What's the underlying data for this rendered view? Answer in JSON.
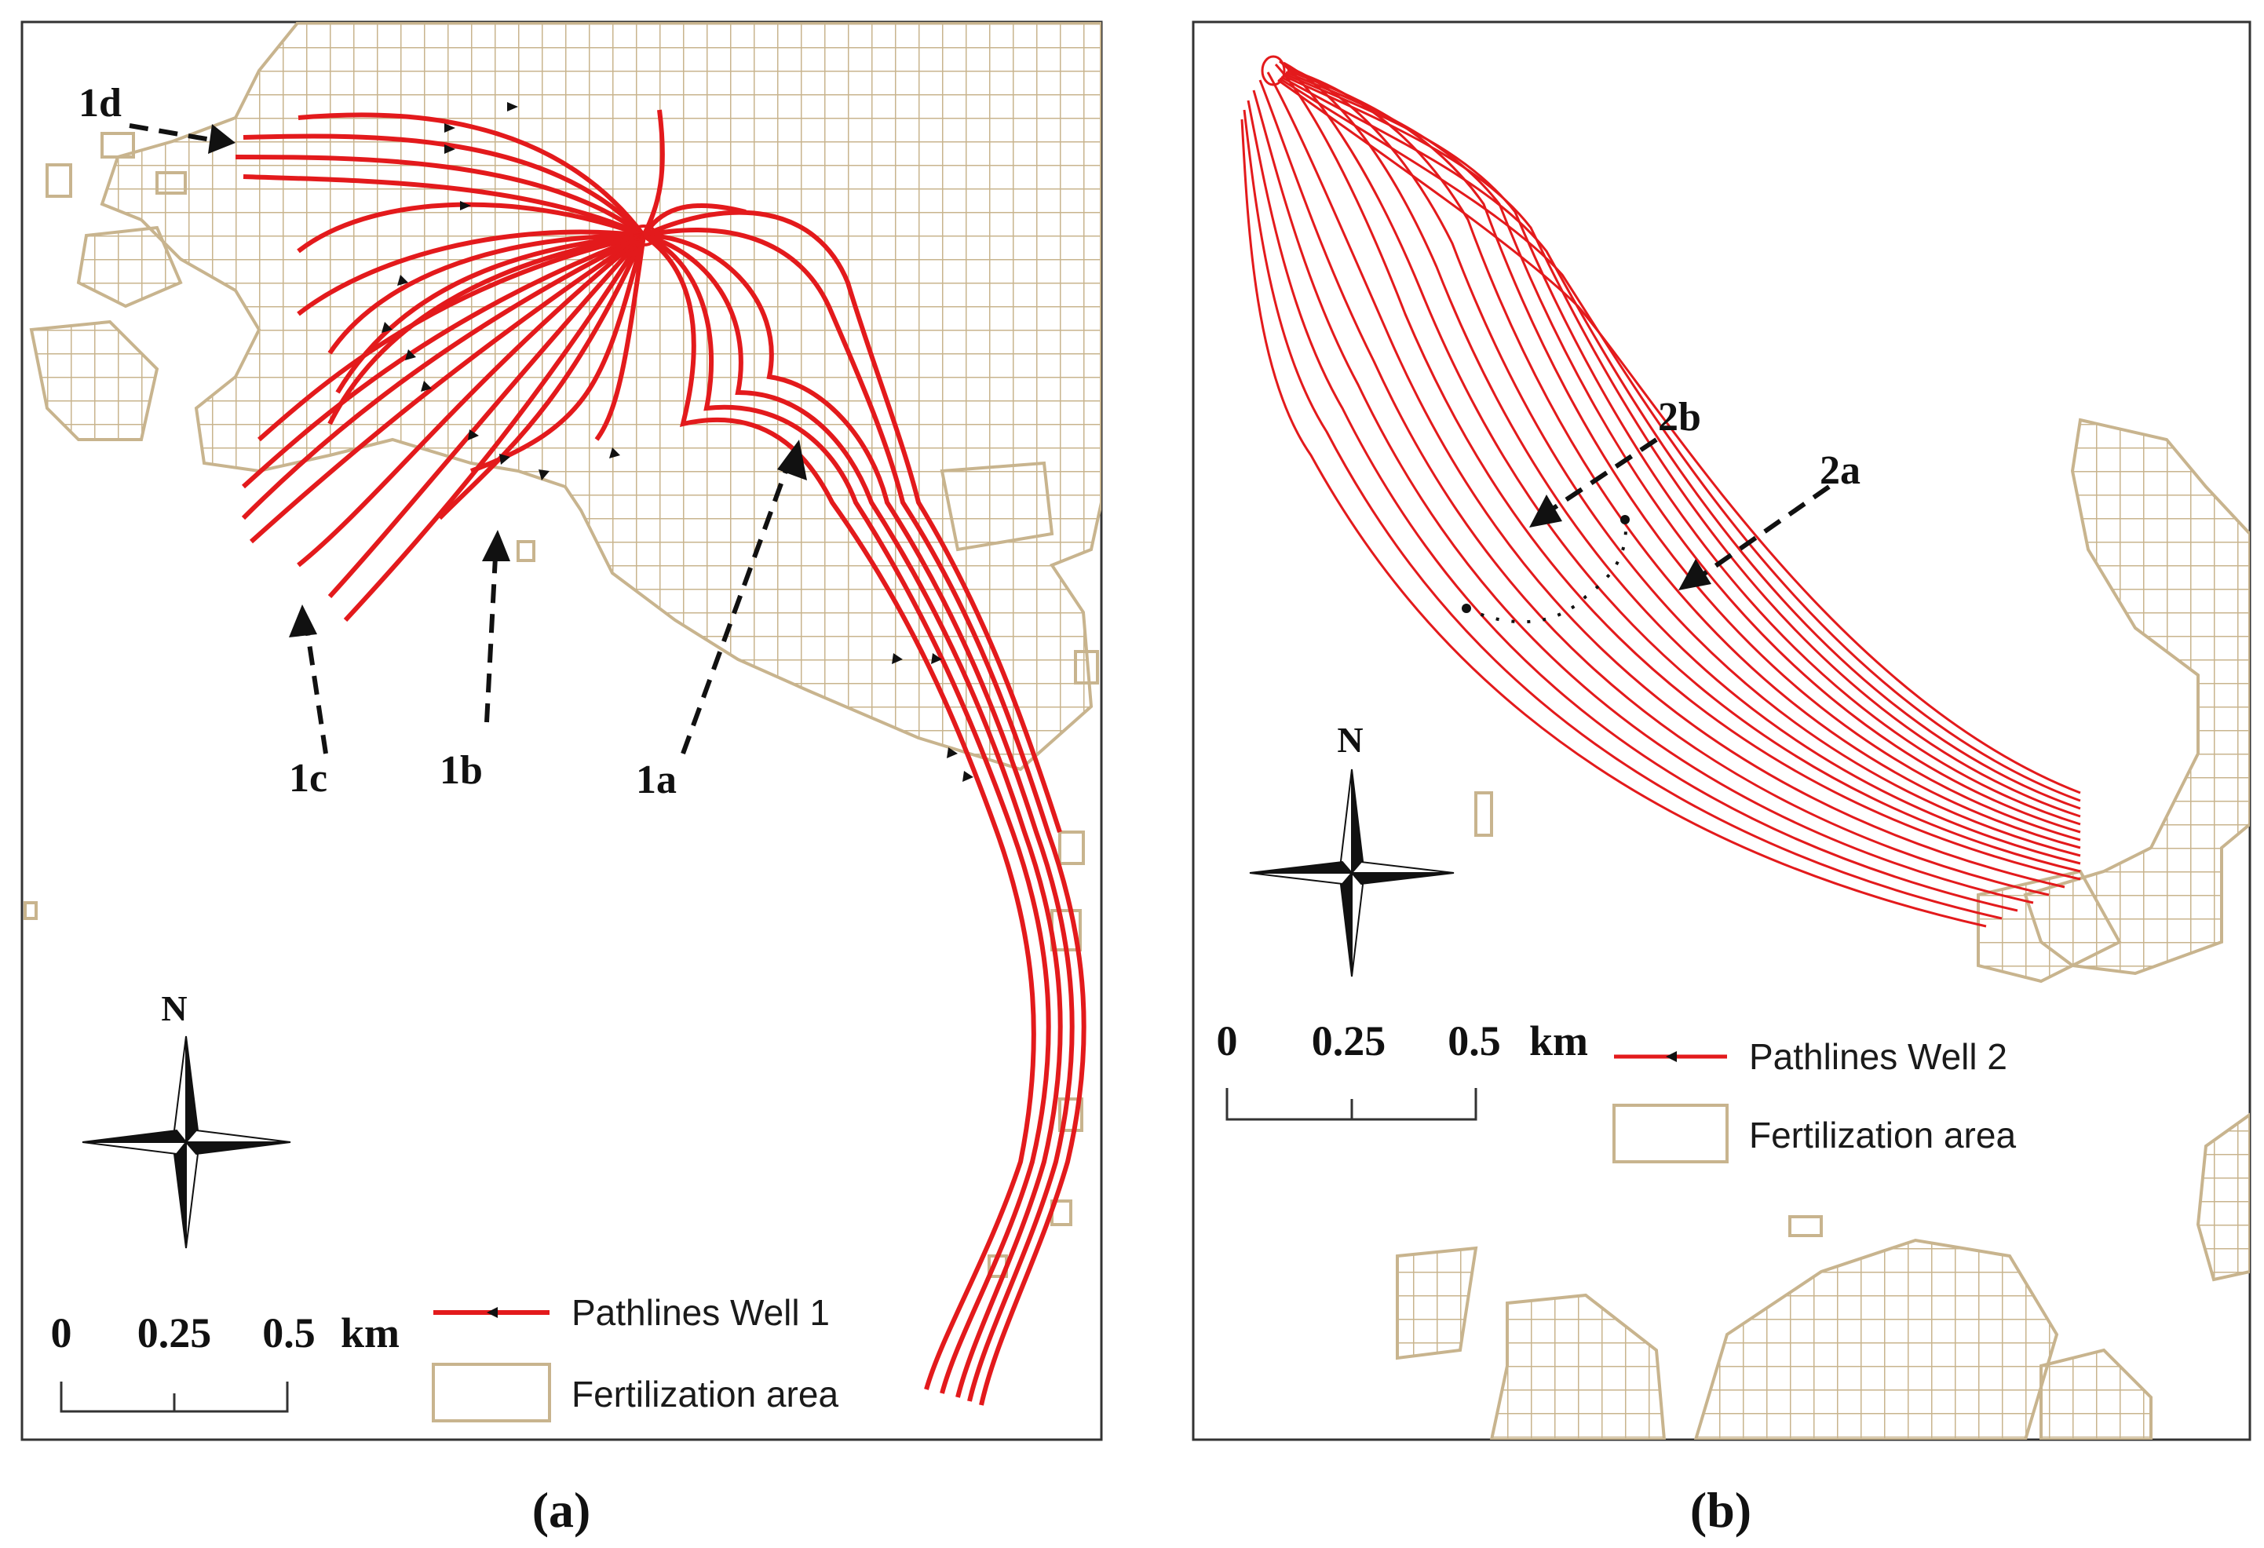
{
  "panels": [
    {
      "id": "a",
      "caption_label": "a",
      "callouts": [
        "1a",
        "1b",
        "1c",
        "1d"
      ],
      "compass": "N",
      "scalebar_ticks": [
        "0",
        "0.25",
        "0.5"
      ],
      "scalebar_unit": "km",
      "legend": {
        "pathlines_label": "Pathlines Well 1",
        "area_label": "Fertilization area"
      }
    },
    {
      "id": "b",
      "caption_label": "b",
      "callouts": [
        "2a",
        "2b"
      ],
      "compass": "N",
      "scalebar_ticks": [
        "0",
        "0.25",
        "0.5"
      ],
      "scalebar_unit": "km",
      "legend": {
        "pathlines_label": "Pathlines Well 2",
        "area_label": "Fertilization area"
      }
    }
  ],
  "colors": {
    "pathline": "#e31a1c",
    "fertilization_area": "#c8b48e",
    "frame": "#333333",
    "arrow": "#111111",
    "background": "#ffffff"
  }
}
